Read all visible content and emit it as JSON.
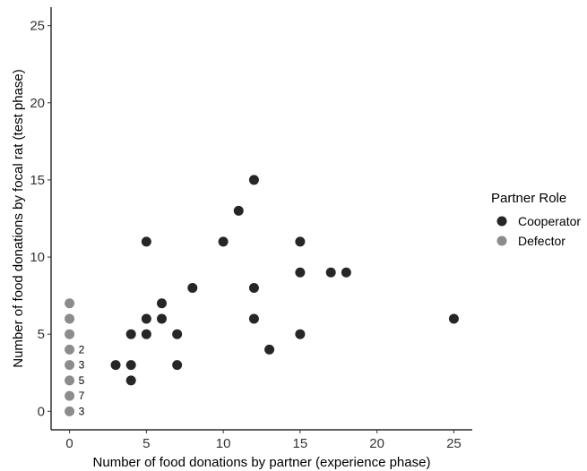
{
  "chart_data": {
    "type": "scatter",
    "title": "",
    "xlabel": "Number of food donations by partner (experience phase)",
    "ylabel": "Number of food donations by focal rat (test phase)",
    "xlim": [
      -1.2,
      26.2
    ],
    "ylim": [
      -1.2,
      26.2
    ],
    "x_ticks": [
      0,
      5,
      10,
      15,
      20,
      25
    ],
    "y_ticks": [
      0,
      5,
      10,
      15,
      20,
      25
    ],
    "grid": false,
    "legend": {
      "title": "Partner Role",
      "position": "right"
    },
    "series": [
      {
        "name": "Cooperator",
        "color": "#262626",
        "points": [
          [
            3,
            3
          ],
          [
            4,
            2
          ],
          [
            4,
            3
          ],
          [
            4,
            5
          ],
          [
            5,
            5
          ],
          [
            5,
            6
          ],
          [
            5,
            11
          ],
          [
            6,
            6
          ],
          [
            6,
            7
          ],
          [
            7,
            3
          ],
          [
            7,
            5
          ],
          [
            8,
            8
          ],
          [
            10,
            11
          ],
          [
            11,
            13
          ],
          [
            12,
            6
          ],
          [
            12,
            8
          ],
          [
            12,
            15
          ],
          [
            13,
            4
          ],
          [
            15,
            5
          ],
          [
            15,
            9
          ],
          [
            15,
            11
          ],
          [
            17,
            9
          ],
          [
            18,
            9
          ],
          [
            25,
            6
          ]
        ]
      },
      {
        "name": "Defector",
        "color": "#8c8c8c",
        "points": [
          [
            0,
            0
          ],
          [
            0,
            1
          ],
          [
            0,
            2
          ],
          [
            0,
            3
          ],
          [
            0,
            4
          ],
          [
            0,
            5
          ],
          [
            0,
            6
          ],
          [
            0,
            7
          ]
        ]
      }
    ],
    "annotations": [
      {
        "x": 0,
        "y": 4,
        "text": "2"
      },
      {
        "x": 0,
        "y": 3,
        "text": "3"
      },
      {
        "x": 0,
        "y": 2,
        "text": "5"
      },
      {
        "x": 0,
        "y": 1,
        "text": "7"
      },
      {
        "x": 0,
        "y": 0,
        "text": "3"
      }
    ]
  }
}
